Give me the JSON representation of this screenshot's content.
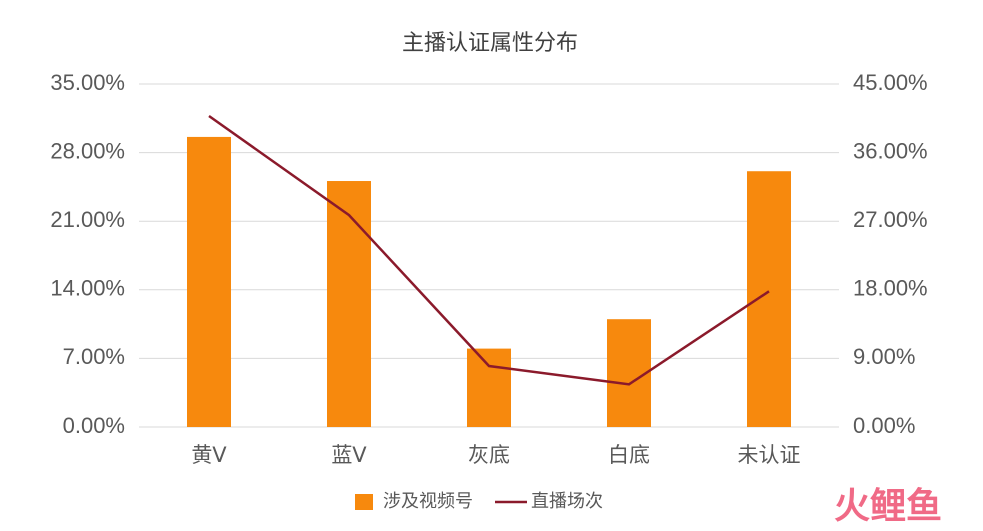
{
  "chart_data": {
    "type": "combo",
    "title": "主播认证属性分布",
    "categories": [
      "黄V",
      "蓝V",
      "灰底",
      "白底",
      "未认证"
    ],
    "series": [
      {
        "name": "涉及视频号",
        "type": "bar",
        "color": "#f7890d",
        "values": [
          29.6,
          25.1,
          8.0,
          11.0,
          26.1
        ]
      },
      {
        "name": "直播场次",
        "type": "line",
        "axis": "y2",
        "color": "#8b1a2b",
        "values": [
          40.8,
          27.8,
          8.0,
          5.6,
          17.8
        ]
      }
    ],
    "ylim": [
      0,
      35
    ],
    "yticks": [
      {
        "value": 0,
        "label": "0.00%"
      },
      {
        "value": 7,
        "label": "7.00%"
      },
      {
        "value": 14,
        "label": "14.00%"
      },
      {
        "value": 21,
        "label": "21.00%"
      },
      {
        "value": 28,
        "label": "28.00%"
      },
      {
        "value": 35,
        "label": "35.00%"
      }
    ],
    "y2lim": [
      0,
      45
    ],
    "y2ticks": [
      {
        "value": 0,
        "label": "0.00%"
      },
      {
        "value": 9,
        "label": "9.00%"
      },
      {
        "value": 18,
        "label": "18.00%"
      },
      {
        "value": 27,
        "label": "27.00%"
      },
      {
        "value": 36,
        "label": "36.00%"
      },
      {
        "value": 45,
        "label": "45.00%"
      }
    ],
    "grid": true,
    "legend": "bottom"
  },
  "watermark": "火鲤鱼"
}
